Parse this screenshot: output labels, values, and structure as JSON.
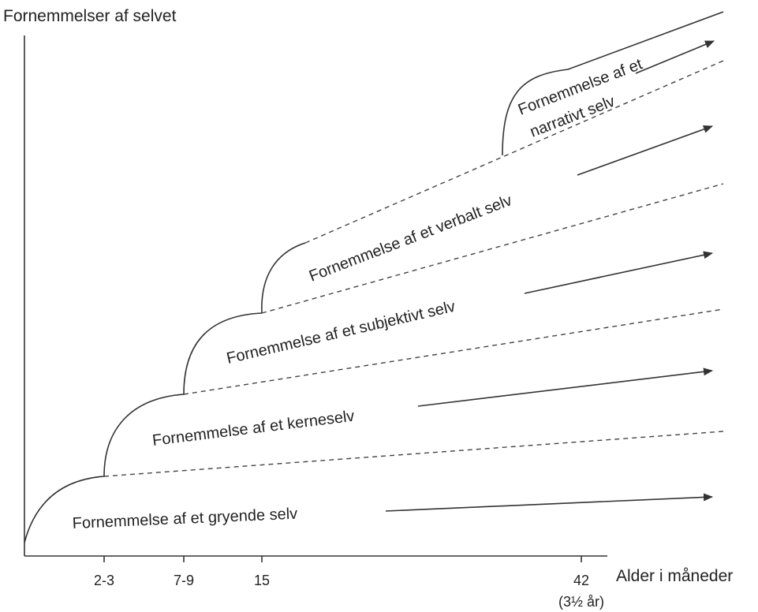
{
  "diagram": {
    "y_axis_title": "Fornemmelser af selvet",
    "x_axis_title": "Alder i måneder",
    "ticks": [
      "2-3",
      "7-9",
      "15",
      "42"
    ],
    "tick_sublabel": "(3½ år)",
    "domains": {
      "emergent": "Fornemmelse af et gryende selv",
      "core": "Fornemmelse af et kerneselv",
      "subjective": "Fornemmelse af et subjektivt selv",
      "verbal": "Fornemmelse af et verbalt selv",
      "narrative_line1": "Fornemmelse af et",
      "narrative_line2": "narrativt selv"
    }
  }
}
